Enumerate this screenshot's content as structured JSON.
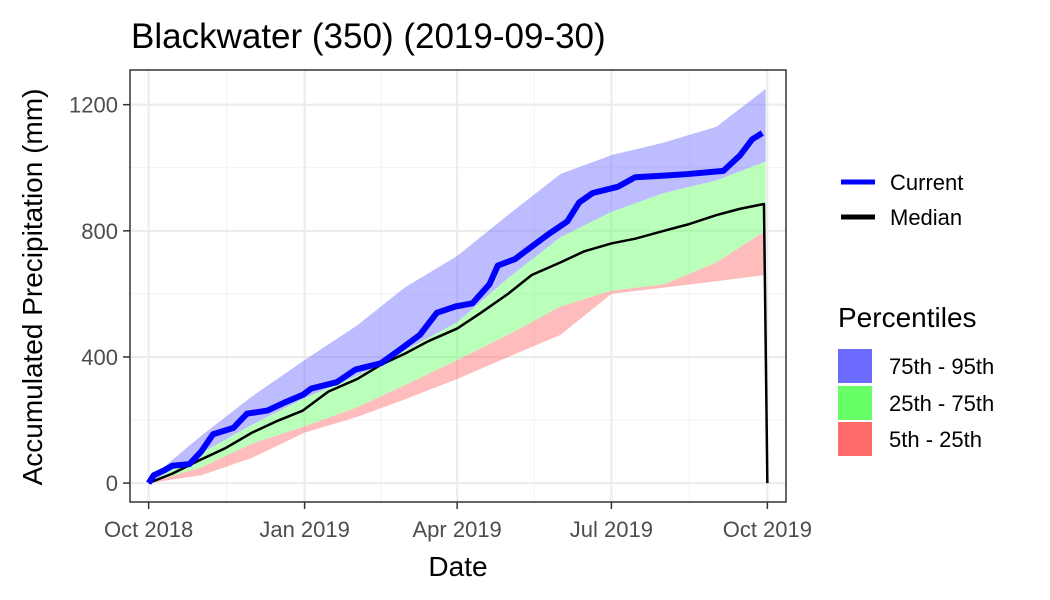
{
  "chart_data": {
    "type": "area",
    "title": "Blackwater (350) (2019-09-30)",
    "xlabel": "Date",
    "ylabel": "Accumulated Precipitation (mm)",
    "x_ticks": [
      "2018-10-01",
      "2019-01-01",
      "2019-04-01",
      "2019-07-01",
      "2019-10-01"
    ],
    "x_tick_labels": [
      "Oct 2018",
      "Jan 2019",
      "Apr 2019",
      "Jul 2019",
      "Oct 2019"
    ],
    "xlim": [
      "2018-09-20",
      "2019-10-12"
    ],
    "y_ticks": [
      0,
      400,
      800,
      1200
    ],
    "ylim": [
      -60,
      1310
    ],
    "grid": true,
    "legend_position": "right",
    "legend": {
      "lines": [
        {
          "name": "Current",
          "color": "#0000ff"
        },
        {
          "name": "Median",
          "color": "#000000"
        }
      ],
      "percentile_title": "Percentiles",
      "bands": [
        {
          "name": "75th - 95th",
          "color": "#6b6bff"
        },
        {
          "name": "25th - 75th",
          "color": "#66ff66"
        },
        {
          "name": "5th - 25th",
          "color": "#ff6b6b"
        }
      ]
    },
    "series": [
      {
        "name": "Current",
        "role": "line",
        "color": "#0000ff",
        "points": [
          [
            "2018-10-01",
            0
          ],
          [
            "2018-10-04",
            25
          ],
          [
            "2018-10-10",
            40
          ],
          [
            "2018-10-15",
            55
          ],
          [
            "2018-10-25",
            60
          ],
          [
            "2018-11-01",
            100
          ],
          [
            "2018-11-08",
            155
          ],
          [
            "2018-11-20",
            175
          ],
          [
            "2018-11-28",
            220
          ],
          [
            "2018-12-10",
            230
          ],
          [
            "2018-12-20",
            255
          ],
          [
            "2018-12-31",
            280
          ],
          [
            "2019-01-05",
            300
          ],
          [
            "2019-01-20",
            320
          ],
          [
            "2019-01-31",
            360
          ],
          [
            "2019-02-15",
            380
          ],
          [
            "2019-02-28",
            430
          ],
          [
            "2019-03-10",
            470
          ],
          [
            "2019-03-20",
            540
          ],
          [
            "2019-03-31",
            560
          ],
          [
            "2019-04-10",
            570
          ],
          [
            "2019-04-20",
            630
          ],
          [
            "2019-04-25",
            690
          ],
          [
            "2019-05-05",
            710
          ],
          [
            "2019-05-15",
            750
          ],
          [
            "2019-05-25",
            790
          ],
          [
            "2019-06-05",
            830
          ],
          [
            "2019-06-12",
            890
          ],
          [
            "2019-06-20",
            920
          ],
          [
            "2019-07-05",
            940
          ],
          [
            "2019-07-15",
            970
          ],
          [
            "2019-08-01",
            975
          ],
          [
            "2019-08-15",
            980
          ],
          [
            "2019-09-05",
            990
          ],
          [
            "2019-09-15",
            1040
          ],
          [
            "2019-09-22",
            1090
          ],
          [
            "2019-09-28",
            1110
          ]
        ]
      },
      {
        "name": "Median",
        "role": "line",
        "color": "#000000",
        "points": [
          [
            "2018-10-01",
            0
          ],
          [
            "2018-10-15",
            30
          ],
          [
            "2018-11-01",
            75
          ],
          [
            "2018-11-15",
            110
          ],
          [
            "2018-12-01",
            160
          ],
          [
            "2018-12-15",
            195
          ],
          [
            "2018-12-31",
            230
          ],
          [
            "2019-01-15",
            290
          ],
          [
            "2019-02-01",
            330
          ],
          [
            "2019-02-15",
            375
          ],
          [
            "2019-03-01",
            410
          ],
          [
            "2019-03-15",
            450
          ],
          [
            "2019-04-01",
            490
          ],
          [
            "2019-04-15",
            540
          ],
          [
            "2019-05-01",
            600
          ],
          [
            "2019-05-15",
            660
          ],
          [
            "2019-06-01",
            700
          ],
          [
            "2019-06-15",
            735
          ],
          [
            "2019-07-01",
            760
          ],
          [
            "2019-07-15",
            775
          ],
          [
            "2019-08-01",
            800
          ],
          [
            "2019-08-15",
            820
          ],
          [
            "2019-09-01",
            850
          ],
          [
            "2019-09-15",
            870
          ],
          [
            "2019-09-29",
            885
          ],
          [
            "2019-10-01",
            0
          ]
        ]
      },
      {
        "name": "75th - 95th",
        "role": "band",
        "color": "#6b6bff",
        "points": [
          [
            "2018-10-01",
            0,
            10
          ],
          [
            "2018-11-01",
            95,
            150
          ],
          [
            "2018-12-01",
            185,
            275
          ],
          [
            "2019-01-01",
            270,
            390
          ],
          [
            "2019-02-01",
            340,
            500
          ],
          [
            "2019-03-01",
            420,
            620
          ],
          [
            "2019-04-01",
            510,
            720
          ],
          [
            "2019-05-01",
            650,
            850
          ],
          [
            "2019-06-01",
            780,
            980
          ],
          [
            "2019-07-01",
            860,
            1040
          ],
          [
            "2019-08-01",
            920,
            1080
          ],
          [
            "2019-09-01",
            960,
            1130
          ],
          [
            "2019-09-30",
            1020,
            1250
          ]
        ]
      },
      {
        "name": "25th - 75th",
        "role": "band",
        "color": "#66ff66",
        "points": [
          [
            "2018-10-01",
            0,
            0
          ],
          [
            "2018-11-01",
            50,
            95
          ],
          [
            "2018-12-01",
            125,
            185
          ],
          [
            "2019-01-01",
            180,
            270
          ],
          [
            "2019-02-01",
            240,
            340
          ],
          [
            "2019-03-01",
            310,
            420
          ],
          [
            "2019-04-01",
            390,
            510
          ],
          [
            "2019-05-01",
            470,
            650
          ],
          [
            "2019-06-01",
            560,
            780
          ],
          [
            "2019-07-01",
            610,
            860
          ],
          [
            "2019-08-01",
            630,
            920
          ],
          [
            "2019-09-01",
            700,
            960
          ],
          [
            "2019-09-30",
            800,
            1020
          ]
        ]
      },
      {
        "name": "5th - 25th",
        "role": "band",
        "color": "#ff6b6b",
        "points": [
          [
            "2018-10-01",
            0,
            0
          ],
          [
            "2018-11-01",
            25,
            50
          ],
          [
            "2018-12-01",
            80,
            125
          ],
          [
            "2019-01-01",
            160,
            180
          ],
          [
            "2019-02-01",
            210,
            240
          ],
          [
            "2019-03-01",
            265,
            310
          ],
          [
            "2019-04-01",
            330,
            390
          ],
          [
            "2019-05-01",
            400,
            470
          ],
          [
            "2019-06-01",
            470,
            560
          ],
          [
            "2019-07-01",
            600,
            610
          ],
          [
            "2019-08-01",
            620,
            630
          ],
          [
            "2019-09-01",
            640,
            700
          ],
          [
            "2019-09-30",
            660,
            800
          ]
        ]
      }
    ]
  }
}
